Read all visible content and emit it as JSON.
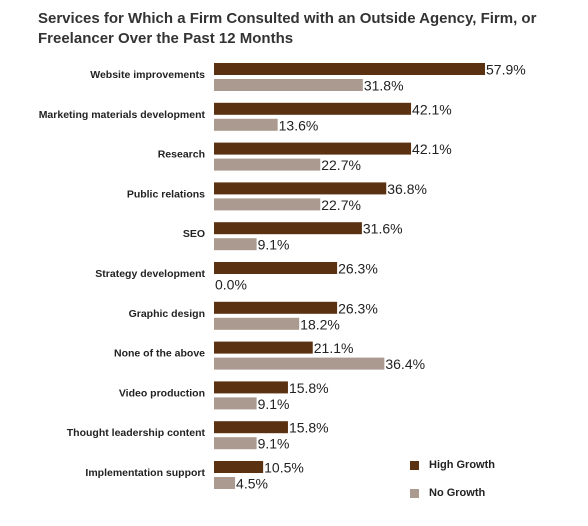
{
  "chart_data": {
    "type": "bar",
    "orientation": "horizontal",
    "title": "Services for Which a Firm Consulted with an Outside Agency, Firm, or Freelancer Over the Past 12 Months",
    "categories": [
      "Website improvements",
      "Marketing materials development",
      "Research",
      "Public relations",
      "SEO",
      "Strategy development",
      "Graphic design",
      "None of the above",
      "Video production",
      "Thought leadership content",
      "Implementation support"
    ],
    "series": [
      {
        "name": "High Growth",
        "color": "#5a3211",
        "values": [
          57.9,
          42.1,
          42.1,
          36.8,
          31.6,
          26.3,
          26.3,
          21.1,
          15.8,
          15.8,
          10.5
        ],
        "labels": [
          "57.9%",
          "42.1%",
          "42.1%",
          "36.8%",
          "31.6%",
          "26.3%",
          "26.3%",
          "21.1%",
          "15.8%",
          "15.8%",
          "10.5%"
        ]
      },
      {
        "name": "No Growth",
        "color": "#ab9a8f",
        "values": [
          31.8,
          13.6,
          22.7,
          22.7,
          9.1,
          0.0,
          18.2,
          36.4,
          9.1,
          9.1,
          4.5
        ],
        "labels": [
          "31.8%",
          "13.6%",
          "22.7%",
          "22.7%",
          "9.1%",
          "0.0%",
          "18.2%",
          "36.4%",
          "9.1%",
          "9.1%",
          "4.5%"
        ]
      }
    ],
    "xlim": [
      0,
      57.9
    ],
    "grid": false,
    "legend_position": "bottom-right"
  }
}
